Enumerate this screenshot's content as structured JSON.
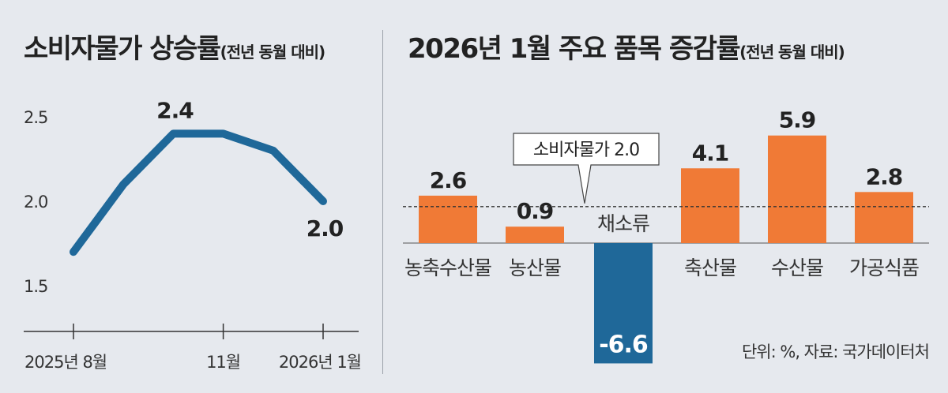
{
  "chart_data": [
    {
      "type": "line",
      "title": "소비자물가 상승률",
      "subtitle": "(전년 동월 대비)",
      "x": [
        "2025-08",
        "2025-09",
        "2025-10",
        "2025-11",
        "2025-12",
        "2026-01"
      ],
      "x_tick_labels": [
        "2025년 8월",
        "11월",
        "2026년 1월"
      ],
      "values": [
        1.7,
        2.1,
        2.4,
        2.4,
        2.3,
        2.0
      ],
      "ylim": [
        1.5,
        2.5
      ],
      "y_ticks": [
        "2.5",
        "2.0",
        "1.5"
      ],
      "data_labels": [
        {
          "index": 2,
          "text": "2.4"
        },
        {
          "index": 5,
          "text": "2.0"
        }
      ],
      "color": "#1f6899",
      "grid": false
    },
    {
      "type": "bar",
      "title": "2026년 1월 주요 품목 증감률",
      "subtitle": "(전년 동월 대비)",
      "categories": [
        "농축수산물",
        "농산물",
        "채소류",
        "축산물",
        "수산물",
        "가공식품"
      ],
      "values": [
        2.6,
        0.9,
        -6.6,
        4.1,
        5.9,
        2.8
      ],
      "value_labels": [
        "2.6",
        "0.9",
        "-6.6",
        "4.1",
        "5.9",
        "2.8"
      ],
      "reference_line": {
        "value": 2.0,
        "label": "소비자물가 2.0"
      },
      "colors": {
        "positive": "#f07a36",
        "negative": "#1f6899"
      },
      "source": "단위: %, 자료: 국가데이터처"
    }
  ]
}
